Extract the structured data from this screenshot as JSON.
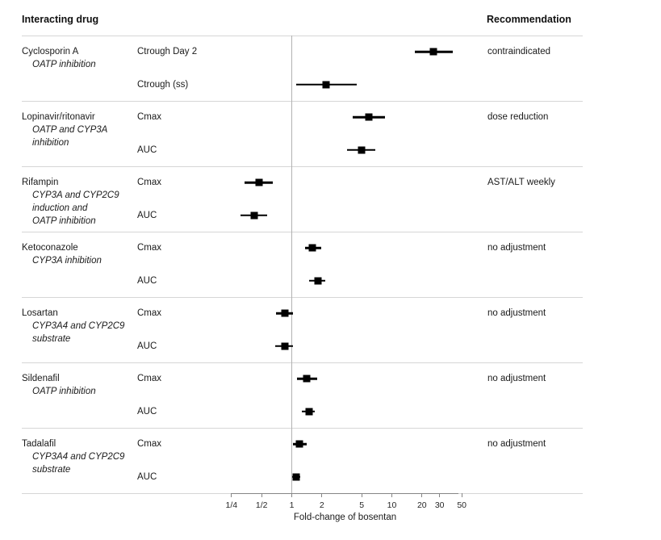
{
  "header": {
    "left": "Interacting drug",
    "right": "Recommendation"
  },
  "chart_data": {
    "type": "forest",
    "xscale": "log",
    "xlabel": "Fold-change of bosentan",
    "xlim": [
      0.2,
      62
    ],
    "reference_value": 1,
    "grid": false,
    "xticks": [
      {
        "label": "1/4",
        "value": 0.25
      },
      {
        "label": "1/2",
        "value": 0.5
      },
      {
        "label": "1",
        "value": 1
      },
      {
        "label": "2",
        "value": 2
      },
      {
        "label": "5",
        "value": 5
      },
      {
        "label": "10",
        "value": 10
      },
      {
        "label": "20",
        "value": 20
      },
      {
        "label": "30",
        "value": 30
      },
      {
        "label": "50",
        "value": 50
      }
    ],
    "groups": [
      {
        "drug": "Cyclosporin A",
        "mechanism": [
          "OATP inhibition"
        ],
        "recommendation": "contraindicated",
        "rows": [
          {
            "param": "Ctrough Day 2",
            "estimate": 26,
            "ci_low": 17,
            "ci_high": 41
          },
          {
            "param": "Ctrough (ss)",
            "estimate": 2.2,
            "ci_low": 1.1,
            "ci_high": 4.5
          }
        ]
      },
      {
        "drug": "Lopinavir/ritonavir",
        "mechanism": [
          "OATP and CYP3A",
          "inhibition"
        ],
        "recommendation": "dose reduction",
        "rows": [
          {
            "param": "Cmax",
            "estimate": 5.9,
            "ci_low": 4.1,
            "ci_high": 8.5
          },
          {
            "param": "AUC",
            "estimate": 5.0,
            "ci_low": 3.6,
            "ci_high": 6.8
          }
        ]
      },
      {
        "drug": "Rifampin",
        "mechanism": [
          "CYP3A and CYP2C9",
          "induction and",
          "OATP inhibition"
        ],
        "recommendation": "AST/ALT weekly",
        "rows": [
          {
            "param": "Cmax",
            "estimate": 0.47,
            "ci_low": 0.34,
            "ci_high": 0.65
          },
          {
            "param": "AUC",
            "estimate": 0.42,
            "ci_low": 0.31,
            "ci_high": 0.57
          }
        ]
      },
      {
        "drug": "Ketoconazole",
        "mechanism": [
          "CYP3A inhibition"
        ],
        "recommendation": "no adjustment",
        "rows": [
          {
            "param": "Cmax",
            "estimate": 1.62,
            "ci_low": 1.35,
            "ci_high": 1.97
          },
          {
            "param": "AUC",
            "estimate": 1.83,
            "ci_low": 1.5,
            "ci_high": 2.15
          }
        ]
      },
      {
        "drug": "Losartan",
        "mechanism": [
          "CYP3A4 and CYP2C9",
          "substrate"
        ],
        "recommendation": "no adjustment",
        "rows": [
          {
            "param": "Cmax",
            "estimate": 0.85,
            "ci_low": 0.7,
            "ci_high": 1.03
          },
          {
            "param": "AUC",
            "estimate": 0.85,
            "ci_low": 0.68,
            "ci_high": 1.03
          }
        ]
      },
      {
        "drug": "Sildenafil",
        "mechanism": [
          "OATP inhibition"
        ],
        "recommendation": "no adjustment",
        "rows": [
          {
            "param": "Cmax",
            "estimate": 1.42,
            "ci_low": 1.12,
            "ci_high": 1.78
          },
          {
            "param": "AUC",
            "estimate": 1.5,
            "ci_low": 1.27,
            "ci_high": 1.7
          }
        ]
      },
      {
        "drug": "Tadalafil",
        "mechanism": [
          "CYP3A4 and CYP2C9",
          "substrate"
        ],
        "recommendation": "no adjustment",
        "rows": [
          {
            "param": "Cmax",
            "estimate": 1.2,
            "ci_low": 1.03,
            "ci_high": 1.4
          },
          {
            "param": "AUC",
            "estimate": 1.11,
            "ci_low": 1.01,
            "ci_high": 1.22
          }
        ]
      }
    ]
  },
  "colors": {
    "marker": "#000000",
    "ci_line": "#000000",
    "reference_line": "#b2b2b2",
    "separator": "#d6d6d6",
    "axis": "#858585",
    "text": "#1a1a1a"
  }
}
